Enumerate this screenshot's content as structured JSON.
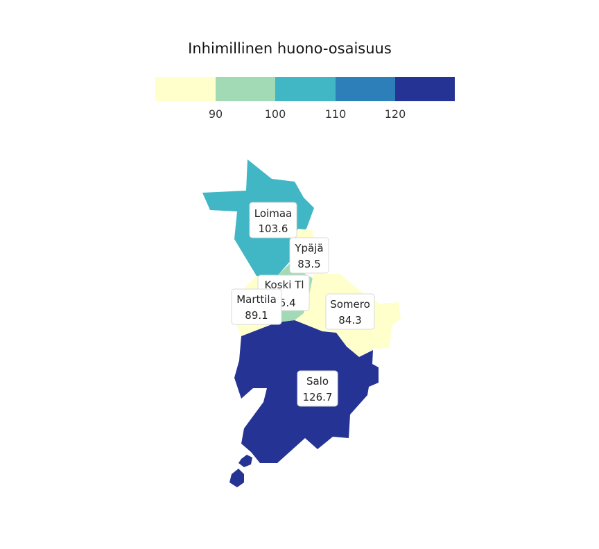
{
  "title": "Inhimillinen huono-osaisuus",
  "legend": {
    "breaks": [
      "90",
      "100",
      "110",
      "120"
    ],
    "bins": [
      {
        "color": "#ffffcc"
      },
      {
        "color": "#a1dab4"
      },
      {
        "color": "#41b6c4"
      },
      {
        "color": "#2c7fb8"
      },
      {
        "color": "#253494"
      }
    ]
  },
  "regions": [
    {
      "name": "Loimaa",
      "value": "103.6",
      "color": "#41b6c4"
    },
    {
      "name": "Ypäjä",
      "value": "83.5",
      "color": "#ffffcc"
    },
    {
      "name": "Koski Tl",
      "value": "95.4",
      "color": "#a1dab4"
    },
    {
      "name": "Marttila",
      "value": "89.1",
      "color": "#ffffcc"
    },
    {
      "name": "Somero",
      "value": "84.3",
      "color": "#ffffcc"
    },
    {
      "name": "Salo",
      "value": "126.7",
      "color": "#253494"
    }
  ]
}
